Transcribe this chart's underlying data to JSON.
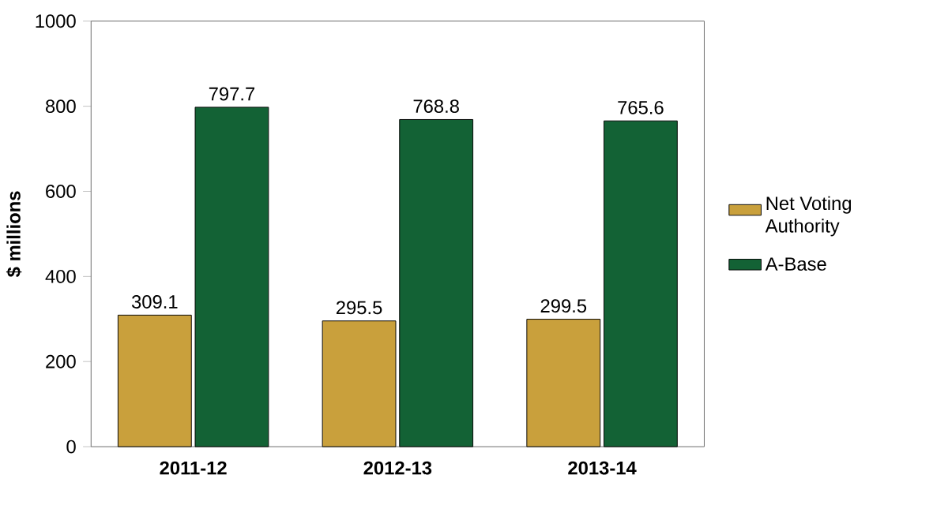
{
  "chart_data": {
    "type": "bar",
    "ylabel": "$ millions",
    "categories": [
      "2011-12",
      "2012-13",
      "2013-14"
    ],
    "series": [
      {
        "name": "Net Voting Authority",
        "color": "#c9a03c",
        "values": [
          309.1,
          295.5,
          299.5
        ]
      },
      {
        "name": "A-Base",
        "color": "#136235",
        "values": [
          797.7,
          768.8,
          765.6
        ]
      }
    ],
    "ylim": [
      0,
      1000
    ],
    "yticks": [
      0,
      200,
      400,
      600,
      800,
      1000
    ],
    "data_labels": true,
    "legend": "right",
    "grid": false
  }
}
